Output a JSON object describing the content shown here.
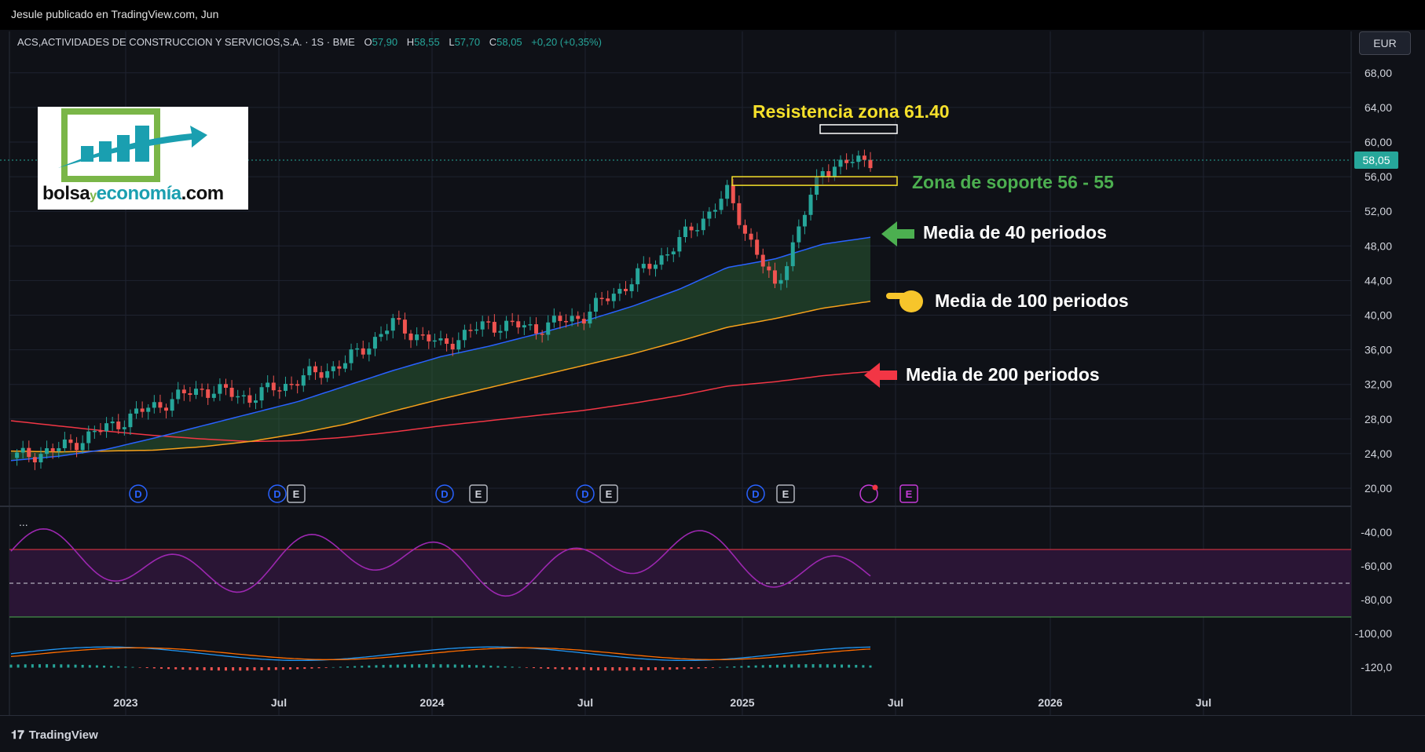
{
  "header": {
    "published": "Jesule publicado en TradingView.com, Jun",
    "symbol": "ACS,ACTIVIDADES DE CONSTRUCCION Y SERVICIOS,S.A.",
    "interval": "1S",
    "exchange": "BME",
    "open_label": "O",
    "open": "57,90",
    "high_label": "H",
    "high": "58,55",
    "low_label": "L",
    "low": "57,70",
    "close_label": "C",
    "close": "58,05",
    "change": "+0,20 (+0,35%)",
    "currency": "EUR"
  },
  "logo": {
    "part1": "bolsa",
    "part2": "y",
    "part3": "economía",
    "part4": ".com"
  },
  "price_scale": [
    "68,00",
    "64,00",
    "60,00",
    "56,00",
    "52,00",
    "48,00",
    "44,00",
    "40,00",
    "36,00",
    "32,00",
    "28,00",
    "24,00",
    "20,00"
  ],
  "current_price": "58,05",
  "osc_scale": [
    "-40,00",
    "-60,00",
    "-80,00",
    "-100,00",
    "-120,0"
  ],
  "time_scale": [
    "2023",
    "Jul",
    "2024",
    "Jul",
    "2025",
    "Jul",
    "2026",
    "Jul"
  ],
  "annotations": {
    "resistance": "Resistencia zona 61.40",
    "support": "Zona de soporte 56 - 55",
    "ma40": "Media de 40 periodos",
    "ma100": "Media de 100 periodos",
    "ma200": "Media de 200 periodos"
  },
  "event_markers": [
    "D",
    "D",
    "E",
    "D",
    "E",
    "D",
    "E",
    "D",
    "E",
    "E"
  ],
  "osc_menu": "...",
  "footer": {
    "brand": "TradingView"
  },
  "colors": {
    "up": "#26a69a",
    "down": "#ef5350",
    "ma40": "#2962ff",
    "ma100": "#f7a21b",
    "ma200": "#f23645",
    "rsi": "#9c27b0",
    "resistance_text": "#f5e02b",
    "support_text": "#4caf50"
  },
  "chart_data": {
    "type": "line",
    "title": "ACS,ACTIVIDADES DE CONSTRUCCION Y SERVICIOS,S.A. · 1S · BME",
    "x": [
      "2022-09",
      "2022-11",
      "2023-01",
      "2023-03",
      "2023-05",
      "2023-07",
      "2023-09",
      "2023-11",
      "2024-01",
      "2024-03",
      "2024-05",
      "2024-07",
      "2024-09",
      "2024-11",
      "2025-01",
      "2025-03",
      "2025-04",
      "2025-05",
      "2025-06"
    ],
    "ylim": [
      18,
      70
    ],
    "series": [
      {
        "name": "",
        "values": [
          23.5,
          24.5,
          27.0,
          29.5,
          31.5,
          30.5,
          32.5,
          34.5,
          39.0,
          36.5,
          39.0,
          38.5,
          40.0,
          44.0,
          48.5,
          54.0,
          43.0,
          57.0,
          58.05
        ]
      },
      {
        "name": "Media de 40 periodos",
        "values": [
          23.2,
          23.7,
          24.5,
          25.8,
          27.2,
          28.6,
          30.0,
          31.8,
          33.6,
          35.2,
          36.4,
          37.8,
          39.3,
          41.0,
          43.0,
          45.5,
          46.5,
          48.2,
          49.0
        ]
      },
      {
        "name": "Media de 100 periodos",
        "values": [
          24.3,
          24.2,
          24.3,
          24.4,
          24.8,
          25.4,
          26.3,
          27.4,
          28.9,
          30.3,
          31.6,
          32.9,
          34.2,
          35.5,
          37.0,
          38.6,
          39.6,
          40.8,
          41.6
        ]
      },
      {
        "name": "Media de 200 periodos",
        "values": [
          27.8,
          27.2,
          26.6,
          26.1,
          25.7,
          25.4,
          25.5,
          25.9,
          26.5,
          27.2,
          27.8,
          28.4,
          29.0,
          29.8,
          30.7,
          31.8,
          32.3,
          33.0,
          33.5
        ]
      }
    ],
    "resistance_zone": [
      61.0,
      62.0
    ],
    "support_zone": [
      55.0,
      56.0
    ],
    "rsi_ylim": [
      -125,
      -35
    ],
    "rsi_levels": [
      -50,
      -70,
      -90
    ]
  }
}
